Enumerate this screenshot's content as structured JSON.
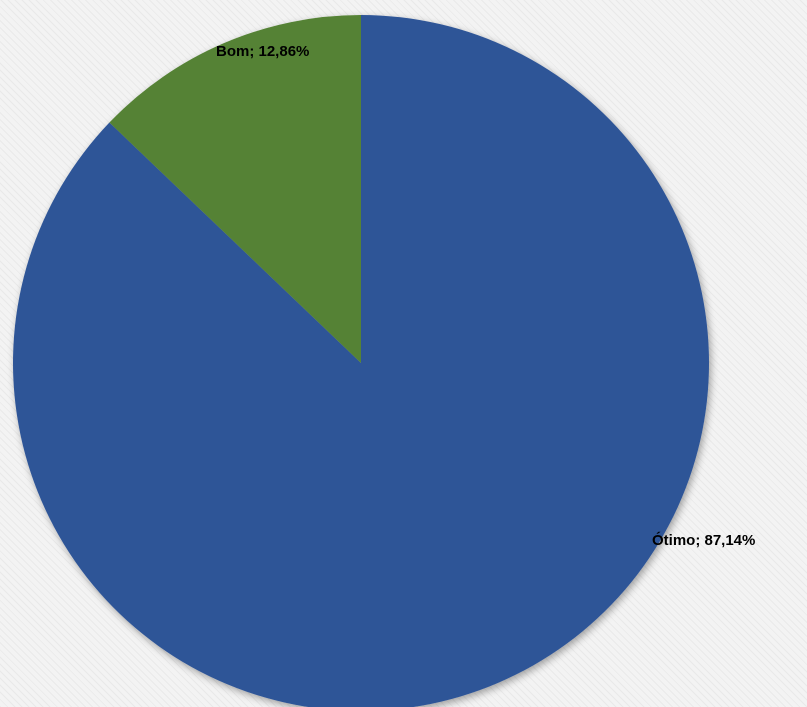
{
  "chart_data": {
    "type": "pie",
    "start_angle_deg": 0,
    "direction": "clockwise",
    "slices": [
      {
        "label": "Ótimo",
        "value": 87.14,
        "data_label": "Ótimo; 87,14%",
        "color": "#2f5597"
      },
      {
        "label": "Bom",
        "value": 12.86,
        "data_label": "Bom; 12,86%",
        "color": "#548235"
      }
    ],
    "title": "",
    "legend": "none"
  }
}
